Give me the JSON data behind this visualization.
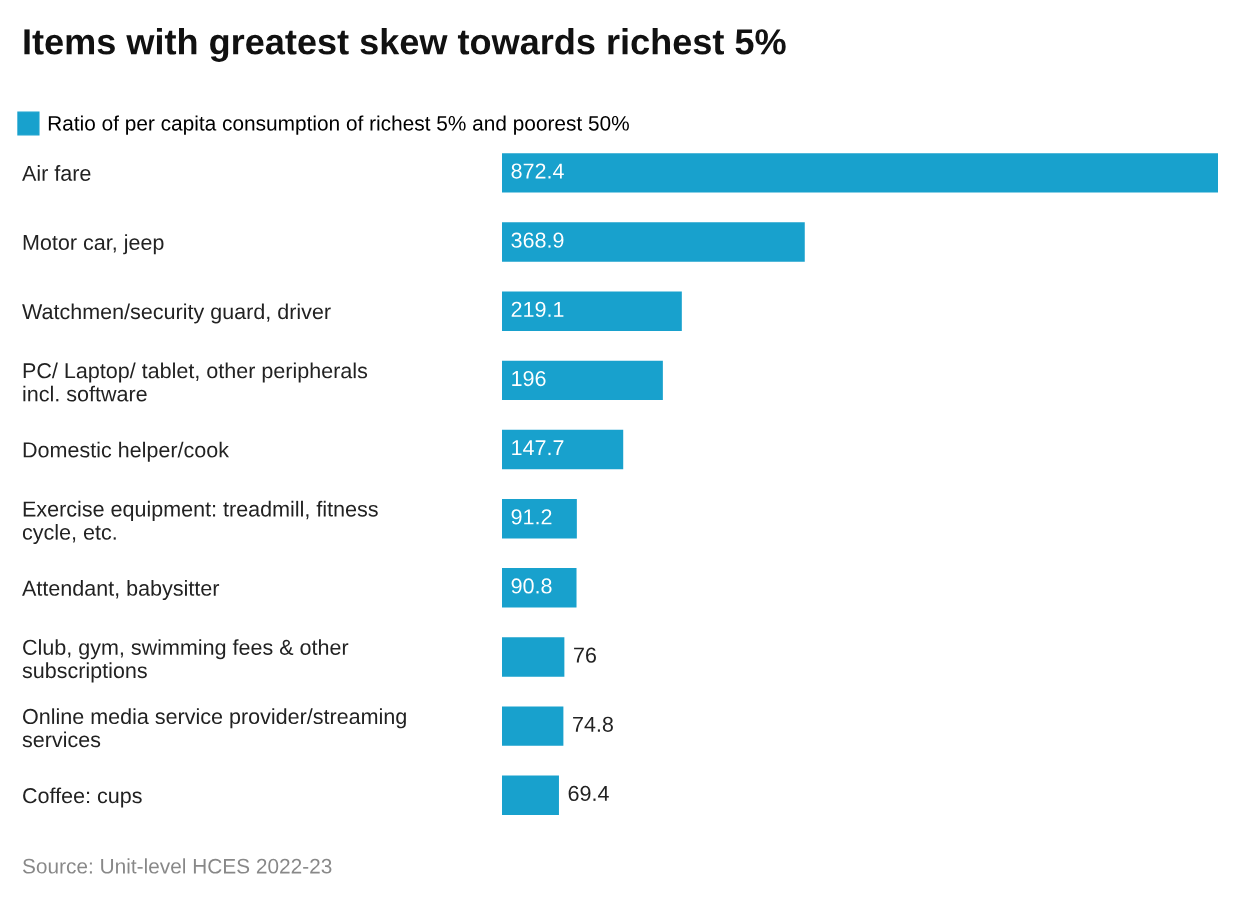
{
  "chart_data": {
    "type": "bar",
    "orientation": "horizontal",
    "title": "Items with greatest skew towards richest 5%",
    "categories": [
      "Air fare",
      "Motor car, jeep",
      "Watchmen/security guard, driver",
      "PC/ Laptop/ tablet, other peripherals incl. software",
      "Domestic helper/cook",
      "Exercise equipment: treadmill, fitness cycle, etc.",
      "Attendant, babysitter",
      "Club, gym, swimming fees & other subscriptions",
      "Online media service provider/streaming services",
      "Coffee: cups"
    ],
    "series": [
      {
        "name": "Ratio of per capita consumption of richest 5% and poorest 50%",
        "color": "#18a1cd",
        "values": [
          872.4,
          368.9,
          219.1,
          196,
          147.7,
          91.2,
          90.8,
          76,
          74.8,
          69.4
        ]
      }
    ],
    "data_labels": true,
    "legend": "top left",
    "grid": false,
    "annotations": [
      "Source: Unit-level HCES 2022-23"
    ]
  }
}
